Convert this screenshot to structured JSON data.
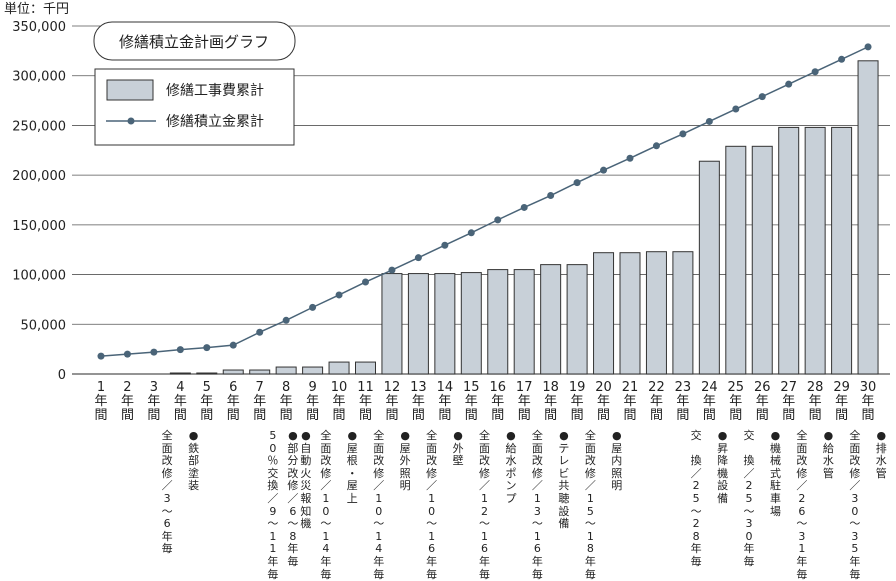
{
  "chart_data": {
    "type": "bar",
    "title": "修繕積立金計画グラフ",
    "unit_label": "単位：千円",
    "ylim": [
      0,
      350000
    ],
    "yticks": [
      "0",
      "50,000",
      "100,000",
      "150,000",
      "200,000",
      "250,000",
      "300,000",
      "350,000"
    ],
    "categories": [
      "1年間",
      "2年間",
      "3年間",
      "4年間",
      "5年間",
      "6年間",
      "7年間",
      "8年間",
      "9年間",
      "10年間",
      "11年間",
      "12年間",
      "13年間",
      "14年間",
      "15年間",
      "16年間",
      "17年間",
      "18年間",
      "19年間",
      "20年間",
      "21年間",
      "22年間",
      "23年間",
      "24年間",
      "25年間",
      "26年間",
      "27年間",
      "28年間",
      "29年間",
      "30年間"
    ],
    "legend": {
      "placement": "top-left",
      "bar_label": "修繕工事費累計",
      "line_label": "修繕積立金累計"
    },
    "series": [
      {
        "name": "修繕工事費累計",
        "kind": "bar",
        "values": [
          0,
          0,
          0,
          1000,
          1000,
          4000,
          4000,
          7000,
          7000,
          12000,
          12000,
          101000,
          101000,
          101000,
          102000,
          105000,
          105000,
          110000,
          110000,
          122000,
          122000,
          123000,
          123000,
          214000,
          229000,
          229000,
          248000,
          248000,
          248000,
          315000
        ]
      },
      {
        "name": "修繕積立金累計",
        "kind": "line",
        "values": [
          18000,
          20000,
          22000,
          24500,
          26500,
          29000,
          42000,
          54000,
          67000,
          79500,
          92500,
          104500,
          117000,
          129500,
          142000,
          155000,
          167500,
          179500,
          192500,
          205000,
          217000,
          229500,
          241500,
          254000,
          266500,
          279000,
          291500,
          304000,
          316500,
          329000
        ]
      }
    ],
    "annotations": [
      {
        "x_index": 3,
        "lines": [
          "全面改修／3〜6年毎"
        ]
      },
      {
        "x_index": 4,
        "lines": [
          "●鉄部塗装"
        ]
      },
      {
        "x_index": 7,
        "lines": [
          "50％交換／9〜11年毎"
        ]
      },
      {
        "x_index": 8,
        "lines": [
          "●部分改修／6〜8年毎",
          "●自動火災報知機"
        ]
      },
      {
        "x_index": 9,
        "lines": [
          "全面改修／10〜14年毎"
        ]
      },
      {
        "x_index": 10,
        "lines": [
          "●屋根・屋上"
        ]
      },
      {
        "x_index": 11,
        "lines": [
          "全面改修／10〜14年毎"
        ]
      },
      {
        "x_index": 12,
        "lines": [
          "●屋外照明"
        ]
      },
      {
        "x_index": 13,
        "lines": [
          "全面改修／10〜16年毎"
        ]
      },
      {
        "x_index": 14,
        "lines": [
          "●外壁"
        ]
      },
      {
        "x_index": 15,
        "lines": [
          "全面改修／12〜16年毎"
        ]
      },
      {
        "x_index": 16,
        "lines": [
          "●給水ポンプ"
        ]
      },
      {
        "x_index": 17,
        "lines": [
          "全面改修／13〜16年毎"
        ]
      },
      {
        "x_index": 18,
        "lines": [
          "●テレビ共聴設備"
        ]
      },
      {
        "x_index": 19,
        "lines": [
          "全面改修／15〜18年毎"
        ]
      },
      {
        "x_index": 20,
        "lines": [
          "●屋内照明"
        ]
      },
      {
        "x_index": 23,
        "lines": [
          "交　換／25〜28年毎"
        ]
      },
      {
        "x_index": 24,
        "lines": [
          "●昇降機設備"
        ]
      },
      {
        "x_index": 25,
        "lines": [
          "交　換／25〜30年毎"
        ]
      },
      {
        "x_index": 26,
        "lines": [
          "●機械式駐車場"
        ]
      },
      {
        "x_index": 27,
        "lines": [
          "全面改修／26〜31年毎"
        ]
      },
      {
        "x_index": 28,
        "lines": [
          "●給水管"
        ]
      },
      {
        "x_index": 29,
        "lines": [
          "全面改修／30〜35年毎"
        ]
      },
      {
        "x_index": 30,
        "lines": [
          "●排水管"
        ]
      }
    ],
    "grid": true,
    "colors": {
      "bar_fill": "#c8d0d8",
      "bar_stroke": "#333333",
      "line": "#4a6478",
      "marker": "#4a6478",
      "grid": "#555555"
    }
  }
}
